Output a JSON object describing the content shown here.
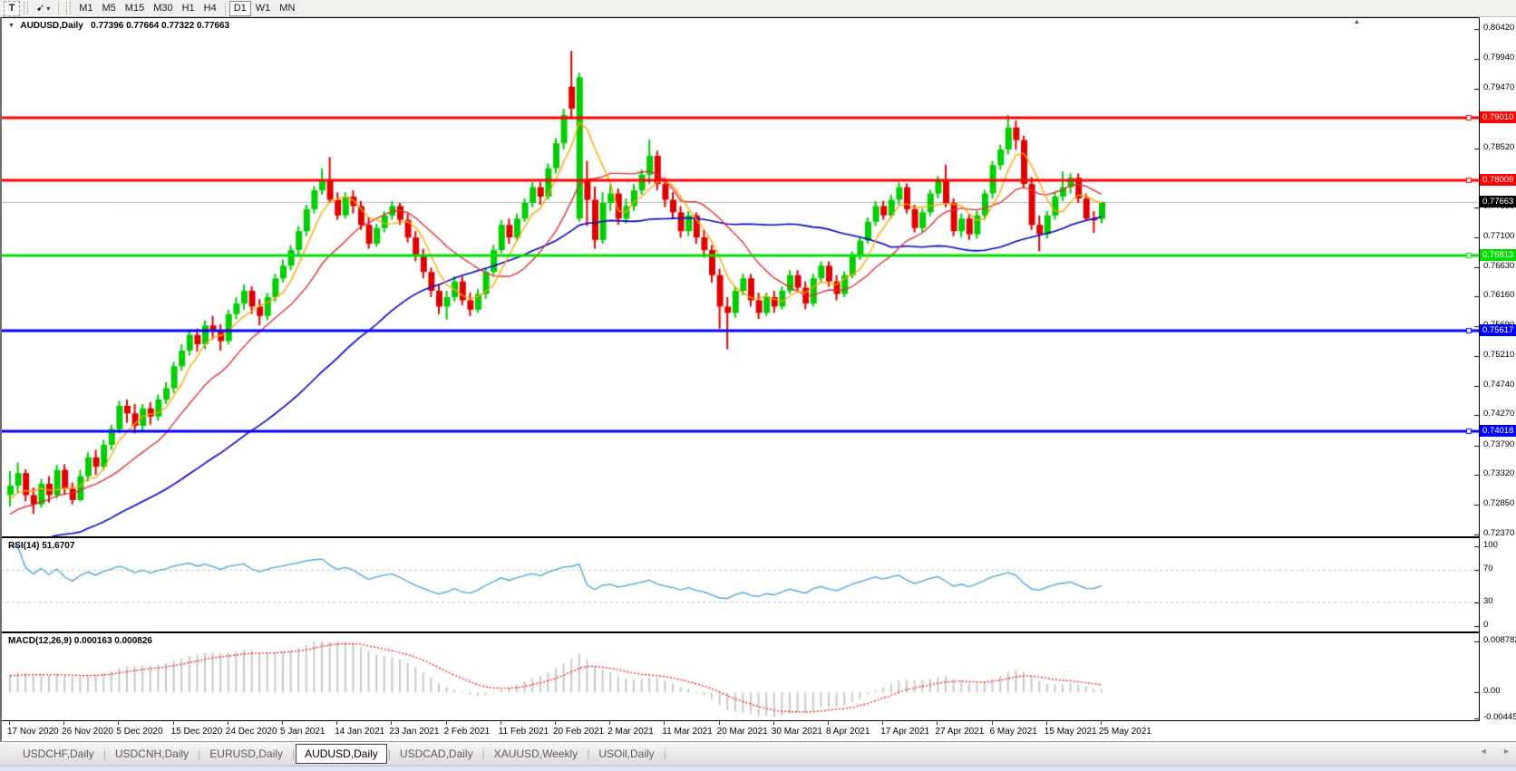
{
  "toolbar": {
    "text_tool_label": "T",
    "timeframes": [
      "M1",
      "M5",
      "M15",
      "M30",
      "H1",
      "H4",
      "D1",
      "W1",
      "MN"
    ],
    "active_timeframe": "D1"
  },
  "icons": {
    "dropdown": "▼",
    "caret": "▾",
    "left_arrow": "◄",
    "right_arrow": "►",
    "shift_marker": "▲",
    "arrow_tool": "➹"
  },
  "chart": {
    "header": {
      "symbol": "AUDUSD,Daily",
      "ohlc": "0.77396 0.77664 0.77322 0.77663"
    },
    "axis_ticks": [
      "0.80420",
      "0.79940",
      "0.79470",
      "0.78520",
      "0.77580",
      "0.77100",
      "0.76630",
      "0.76160",
      "0.75690",
      "0.75210",
      "0.74740",
      "0.74270",
      "0.73790",
      "0.73320",
      "0.72850",
      "0.72370"
    ],
    "lines": [
      {
        "label": "0.79010",
        "price": 0.7901,
        "color": "#FF0000",
        "width": 3
      },
      {
        "label": "0.78009",
        "price": 0.78009,
        "color": "#FF0000",
        "width": 3
      },
      {
        "label": "0.76813",
        "price": 0.76813,
        "color": "#00DE00",
        "width": 3
      },
      {
        "label": "0.75617",
        "price": 0.75617,
        "color": "#0000FF",
        "width": 3
      },
      {
        "label": "0.74018",
        "price": 0.74018,
        "color": "#0000FF",
        "width": 3
      }
    ],
    "current": {
      "label": "0.77663",
      "price": 0.77663,
      "line_color": "#B8B8B8",
      "label_bg": "#000000"
    },
    "colors": {
      "bull": "#00CE00",
      "bear": "#E00000",
      "ma_fast": "#FFA500",
      "ma_mid": "#E03030",
      "ma_slow": "#0000CC"
    }
  },
  "rsi": {
    "header": "RSI(14) 51.6707",
    "value": 51.6707,
    "ticks": [
      "100",
      "70",
      "30",
      "0"
    ],
    "levels": [
      70,
      30
    ],
    "line_color": "#4AA0D8"
  },
  "macd": {
    "header": "MACD(12,26,9) 0.000163 0.000826",
    "ticks": [
      {
        "label": "0.008782",
        "value": 0.008782
      },
      {
        "label": "0.00",
        "value": 0
      },
      {
        "label": "-0.004455",
        "value": -0.004455
      }
    ],
    "bar_color": "#C8C8C8",
    "signal_color": "#FF0000"
  },
  "dates": [
    "17 Nov 2020",
    "26 Nov 2020",
    "5 Dec 2020",
    "15 Dec 2020",
    "24 Dec 2020",
    "5 Jan 2021",
    "14 Jan 2021",
    "23 Jan 2021",
    "2 Feb 2021",
    "11 Feb 2021",
    "20 Feb 2021",
    "2 Mar 2021",
    "11 Mar 2021",
    "20 Mar 2021",
    "30 Mar 2021",
    "8 Apr 2021",
    "17 Apr 2021",
    "27 Apr 2021",
    "6 May 2021",
    "15 May 2021",
    "25 May 2021"
  ],
  "tabs": {
    "items": [
      "USDCHF,Daily",
      "USDCNH,Daily",
      "EURUSD,Daily",
      "AUDUSD,Daily",
      "USDCAD,Daily",
      "XAUUSD,Weekly",
      "USOil,Daily"
    ],
    "active": "AUDUSD,Daily"
  },
  "chart_data": {
    "type": "candlestick",
    "symbol": "AUDUSD",
    "timeframe": "Daily",
    "x_label_every": 7,
    "price_axis_top": 0.8049,
    "price_axis_bottom": 0.7233,
    "ma_periods": {
      "fast": 5,
      "mid": 13,
      "slow": 40
    },
    "ohlc": [
      [
        0.73,
        0.7338,
        0.7282,
        0.7315
      ],
      [
        0.7315,
        0.7352,
        0.7304,
        0.7335
      ],
      [
        0.7335,
        0.7341,
        0.729,
        0.73
      ],
      [
        0.73,
        0.7312,
        0.727,
        0.7285
      ],
      [
        0.7285,
        0.7326,
        0.728,
        0.7318
      ],
      [
        0.7318,
        0.733,
        0.7288,
        0.73
      ],
      [
        0.73,
        0.7348,
        0.7295,
        0.734
      ],
      [
        0.734,
        0.7349,
        0.73,
        0.731
      ],
      [
        0.731,
        0.732,
        0.7285,
        0.7292
      ],
      [
        0.7292,
        0.734,
        0.729,
        0.733
      ],
      [
        0.733,
        0.7368,
        0.7322,
        0.736
      ],
      [
        0.736,
        0.7372,
        0.7332,
        0.7345
      ],
      [
        0.7345,
        0.7388,
        0.734,
        0.738
      ],
      [
        0.738,
        0.7412,
        0.7372,
        0.7405
      ],
      [
        0.7405,
        0.745,
        0.7398,
        0.7442
      ],
      [
        0.7442,
        0.7452,
        0.7415,
        0.743
      ],
      [
        0.743,
        0.7445,
        0.7398,
        0.741
      ],
      [
        0.741,
        0.7445,
        0.7402,
        0.7438
      ],
      [
        0.7438,
        0.7448,
        0.7412,
        0.7425
      ],
      [
        0.7425,
        0.746,
        0.7418,
        0.7452
      ],
      [
        0.7452,
        0.748,
        0.7445,
        0.747
      ],
      [
        0.747,
        0.7512,
        0.7462,
        0.7505
      ],
      [
        0.7505,
        0.754,
        0.7498,
        0.753
      ],
      [
        0.753,
        0.7562,
        0.7522,
        0.7555
      ],
      [
        0.7555,
        0.7565,
        0.7528,
        0.754
      ],
      [
        0.754,
        0.7578,
        0.7532,
        0.757
      ],
      [
        0.757,
        0.7585,
        0.7548,
        0.756
      ],
      [
        0.756,
        0.7572,
        0.753,
        0.7545
      ],
      [
        0.7545,
        0.7595,
        0.754,
        0.7588
      ],
      [
        0.7588,
        0.7615,
        0.758,
        0.7605
      ],
      [
        0.7605,
        0.7635,
        0.7595,
        0.7625
      ],
      [
        0.7625,
        0.7632,
        0.7588,
        0.76
      ],
      [
        0.76,
        0.7612,
        0.757,
        0.7585
      ],
      [
        0.7585,
        0.7622,
        0.7578,
        0.7615
      ],
      [
        0.7615,
        0.7652,
        0.7608,
        0.7645
      ],
      [
        0.7645,
        0.7675,
        0.7638,
        0.7665
      ],
      [
        0.7665,
        0.7698,
        0.7658,
        0.769
      ],
      [
        0.769,
        0.7728,
        0.7682,
        0.772
      ],
      [
        0.772,
        0.7762,
        0.7712,
        0.7755
      ],
      [
        0.7755,
        0.7792,
        0.7748,
        0.7785
      ],
      [
        0.7785,
        0.782,
        0.7778,
        0.78
      ],
      [
        0.78,
        0.7838,
        0.7765,
        0.777
      ],
      [
        0.777,
        0.7782,
        0.7738,
        0.7745
      ],
      [
        0.7745,
        0.7782,
        0.774,
        0.7775
      ],
      [
        0.7775,
        0.7785,
        0.7748,
        0.776
      ],
      [
        0.776,
        0.7768,
        0.7722,
        0.773
      ],
      [
        0.773,
        0.7742,
        0.7692,
        0.77
      ],
      [
        0.77,
        0.7732,
        0.7695,
        0.7725
      ],
      [
        0.7725,
        0.7752,
        0.7718,
        0.7745
      ],
      [
        0.7745,
        0.7768,
        0.7738,
        0.776
      ],
      [
        0.776,
        0.7765,
        0.773,
        0.7738
      ],
      [
        0.7738,
        0.7748,
        0.7702,
        0.771
      ],
      [
        0.771,
        0.772,
        0.7672,
        0.768
      ],
      [
        0.768,
        0.7692,
        0.7645,
        0.7655
      ],
      [
        0.7655,
        0.7662,
        0.7615,
        0.7625
      ],
      [
        0.7625,
        0.7635,
        0.7588,
        0.76
      ],
      [
        0.76,
        0.7625,
        0.7579,
        0.7615
      ],
      [
        0.7615,
        0.7648,
        0.7608,
        0.764
      ],
      [
        0.764,
        0.7648,
        0.7602,
        0.761
      ],
      [
        0.761,
        0.7622,
        0.7585,
        0.7595
      ],
      [
        0.7595,
        0.7628,
        0.759,
        0.762
      ],
      [
        0.762,
        0.7662,
        0.7612,
        0.7655
      ],
      [
        0.7655,
        0.7698,
        0.765,
        0.769
      ],
      [
        0.769,
        0.7738,
        0.7685,
        0.773
      ],
      [
        0.773,
        0.774,
        0.77,
        0.771
      ],
      [
        0.771,
        0.7748,
        0.7705,
        0.774
      ],
      [
        0.774,
        0.7772,
        0.7735,
        0.7765
      ],
      [
        0.7765,
        0.7798,
        0.7758,
        0.779
      ],
      [
        0.779,
        0.7798,
        0.7762,
        0.7775
      ],
      [
        0.7775,
        0.7828,
        0.777,
        0.782
      ],
      [
        0.782,
        0.7868,
        0.7812,
        0.786
      ],
      [
        0.786,
        0.7915,
        0.785,
        0.7905
      ],
      [
        0.795,
        0.8007,
        0.7898,
        0.7915
      ],
      [
        0.774,
        0.7972,
        0.7735,
        0.7965
      ],
      [
        0.78,
        0.7832,
        0.7728,
        0.777
      ],
      [
        0.777,
        0.7791,
        0.7692,
        0.7706
      ],
      [
        0.7706,
        0.7782,
        0.77,
        0.7765
      ],
      [
        0.7765,
        0.7795,
        0.7752,
        0.778
      ],
      [
        0.778,
        0.7788,
        0.773,
        0.774
      ],
      [
        0.774,
        0.7772,
        0.7732,
        0.776
      ],
      [
        0.776,
        0.7795,
        0.7752,
        0.7785
      ],
      [
        0.7785,
        0.7818,
        0.7778,
        0.781
      ],
      [
        0.781,
        0.7866,
        0.7795,
        0.784
      ],
      [
        0.784,
        0.7848,
        0.7785,
        0.7795
      ],
      [
        0.7795,
        0.7805,
        0.7758,
        0.777
      ],
      [
        0.777,
        0.7782,
        0.774,
        0.775
      ],
      [
        0.775,
        0.776,
        0.771,
        0.772
      ],
      [
        0.772,
        0.7752,
        0.7712,
        0.7745
      ],
      [
        0.7745,
        0.775,
        0.77,
        0.771
      ],
      [
        0.771,
        0.7722,
        0.7678,
        0.769
      ],
      [
        0.769,
        0.7698,
        0.7638,
        0.765
      ],
      [
        0.765,
        0.766,
        0.7565,
        0.76
      ],
      [
        0.76,
        0.7615,
        0.7532,
        0.759
      ],
      [
        0.759,
        0.7632,
        0.7582,
        0.7625
      ],
      [
        0.7625,
        0.7652,
        0.7618,
        0.7645
      ],
      [
        0.7645,
        0.7652,
        0.76,
        0.761
      ],
      [
        0.761,
        0.7622,
        0.758,
        0.759
      ],
      [
        0.759,
        0.7622,
        0.7585,
        0.7615
      ],
      [
        0.7615,
        0.7625,
        0.759,
        0.76
      ],
      [
        0.76,
        0.7632,
        0.7595,
        0.7625
      ],
      [
        0.7625,
        0.7658,
        0.762,
        0.765
      ],
      [
        0.765,
        0.7658,
        0.7622,
        0.763
      ],
      [
        0.763,
        0.764,
        0.7596,
        0.7605
      ],
      [
        0.7605,
        0.7652,
        0.76,
        0.7645
      ],
      [
        0.7645,
        0.7672,
        0.7638,
        0.7665
      ],
      [
        0.7665,
        0.7672,
        0.7632,
        0.764
      ],
      [
        0.764,
        0.765,
        0.761,
        0.762
      ],
      [
        0.762,
        0.7656,
        0.7615,
        0.765
      ],
      [
        0.765,
        0.7688,
        0.7645,
        0.768
      ],
      [
        0.768,
        0.7712,
        0.7674,
        0.7705
      ],
      [
        0.7705,
        0.7742,
        0.77,
        0.7735
      ],
      [
        0.7735,
        0.7768,
        0.7728,
        0.776
      ],
      [
        0.776,
        0.7768,
        0.7738,
        0.7745
      ],
      [
        0.7745,
        0.7778,
        0.774,
        0.777
      ],
      [
        0.777,
        0.7798,
        0.7762,
        0.779
      ],
      [
        0.779,
        0.7796,
        0.7748,
        0.7755
      ],
      [
        0.7755,
        0.7762,
        0.7718,
        0.7725
      ],
      [
        0.7725,
        0.7756,
        0.7718,
        0.775
      ],
      [
        0.775,
        0.7786,
        0.7744,
        0.778
      ],
      [
        0.778,
        0.7808,
        0.7772,
        0.78
      ],
      [
        0.78,
        0.7826,
        0.7758,
        0.7765
      ],
      [
        0.7765,
        0.7772,
        0.7712,
        0.772
      ],
      [
        0.772,
        0.7748,
        0.771,
        0.774
      ],
      [
        0.774,
        0.7746,
        0.7706,
        0.7715
      ],
      [
        0.7715,
        0.7752,
        0.7708,
        0.7745
      ],
      [
        0.7745,
        0.7786,
        0.7738,
        0.778
      ],
      [
        0.778,
        0.7832,
        0.7772,
        0.7825
      ],
      [
        0.7825,
        0.7858,
        0.7818,
        0.785
      ],
      [
        0.785,
        0.7905,
        0.7842,
        0.7885
      ],
      [
        0.7885,
        0.7896,
        0.785,
        0.7865
      ],
      [
        0.7865,
        0.7872,
        0.7788,
        0.7795
      ],
      [
        0.7795,
        0.7806,
        0.7722,
        0.773
      ],
      [
        0.773,
        0.7745,
        0.7688,
        0.7715
      ],
      [
        0.7715,
        0.7752,
        0.7708,
        0.7745
      ],
      [
        0.7745,
        0.7782,
        0.7738,
        0.7775
      ],
      [
        0.7775,
        0.7815,
        0.7768,
        0.779
      ],
      [
        0.779,
        0.7812,
        0.778,
        0.7805
      ],
      [
        0.7805,
        0.7812,
        0.7765,
        0.7772
      ],
      [
        0.7772,
        0.778,
        0.7736,
        0.774
      ],
      [
        0.774,
        0.7752,
        0.7717,
        0.7739
      ],
      [
        0.77396,
        0.77664,
        0.77322,
        0.77663
      ]
    ]
  }
}
